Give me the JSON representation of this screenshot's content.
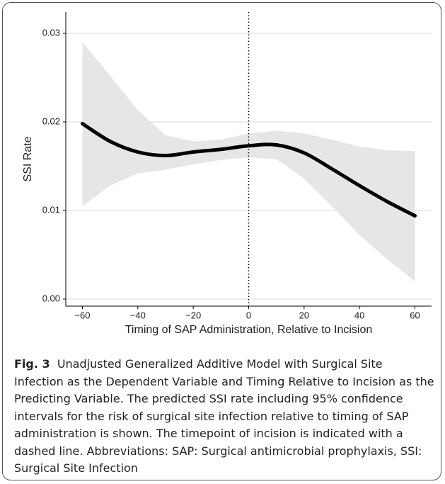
{
  "chart_data": {
    "type": "line",
    "x_label": "Timing of SAP Administration, Relative to Incision",
    "y_label": "SSI Rate",
    "x": [
      -60,
      -50,
      -40,
      -30,
      -20,
      -10,
      0,
      10,
      20,
      30,
      40,
      50,
      60
    ],
    "values": [
      0.0198,
      0.0178,
      0.0166,
      0.0162,
      0.0166,
      0.0169,
      0.0173,
      0.0174,
      0.0165,
      0.0147,
      0.0128,
      0.011,
      0.0094
    ],
    "band": {
      "lower": [
        0.0105,
        0.0128,
        0.0142,
        0.0146,
        0.0152,
        0.0157,
        0.016,
        0.0158,
        0.0136,
        0.0105,
        0.0072,
        0.0045,
        0.002
      ],
      "upper": [
        0.029,
        0.0252,
        0.0213,
        0.0185,
        0.0178,
        0.018,
        0.0187,
        0.019,
        0.0187,
        0.018,
        0.0172,
        0.0168,
        0.0167
      ],
      "color": "#e6e6e6"
    },
    "color": "#000000",
    "vline": 0,
    "xlim": [
      -66,
      66
    ],
    "ylim": [
      -0.0008,
      0.0324
    ],
    "xticks": [
      {
        "value": -60,
        "label": "−60"
      },
      {
        "value": -40,
        "label": "−40"
      },
      {
        "value": -20,
        "label": "−20"
      },
      0,
      20,
      40,
      60
    ],
    "yticks": [
      {
        "value": 0,
        "label": "0.00"
      },
      {
        "value": 0.01,
        "label": "0.01"
      },
      {
        "value": 0.02,
        "label": "0.02"
      },
      {
        "value": 0.03,
        "label": "0.03"
      }
    ],
    "grid": true
  },
  "caption": {
    "label": "Fig. 3",
    "text": "Unadjusted Generalized Additive Model with Surgical Site Infection as the Dependent Variable and Timing Relative to Incision as the Predicting Variable. The predicted SSI rate including 95% confidence intervals for the risk of surgical site infection relative to timing of SAP administration is shown. The timepoint of incision is indicated with a dashed line. Abbreviations: SAP: Surgical antimicrobial prophylaxis, SSI: Surgical Site Infection"
  }
}
